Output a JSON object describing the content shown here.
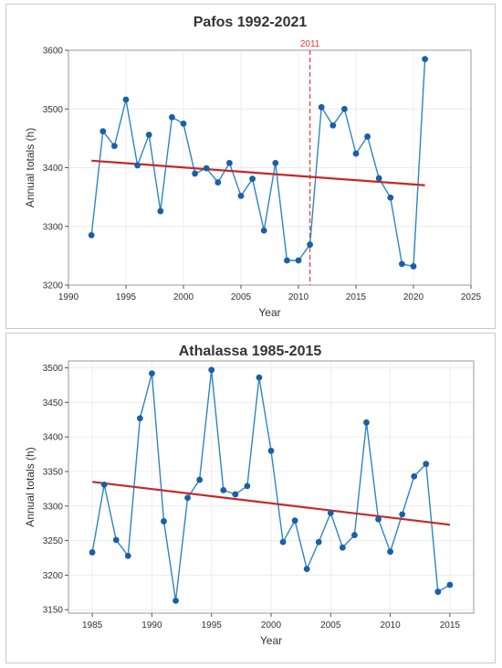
{
  "chart_data": [
    {
      "type": "line",
      "title": "Pafos 1992-2021",
      "xlabel": "Year",
      "ylabel": "Annual totals (h)",
      "xlim": [
        1990,
        2025
      ],
      "ylim": [
        3200,
        3600
      ],
      "xticks": [
        1990,
        1995,
        2000,
        2005,
        2010,
        2015,
        2020,
        2025
      ],
      "yticks": [
        3200,
        3300,
        3400,
        3500,
        3600
      ],
      "x": [
        1992,
        1993,
        1994,
        1995,
        1996,
        1997,
        1998,
        1999,
        2000,
        2001,
        2002,
        2003,
        2004,
        2005,
        2006,
        2007,
        2008,
        2009,
        2010,
        2011,
        2012,
        2013,
        2014,
        2015,
        2016,
        2017,
        2018,
        2019,
        2020,
        2021
      ],
      "values": [
        3285,
        3462,
        3437,
        3516,
        3404,
        3456,
        3326,
        3486,
        3475,
        3390,
        3399,
        3375,
        3408,
        3352,
        3381,
        3293,
        3408,
        3242,
        3242,
        3269,
        3503,
        3472,
        3500,
        3424,
        3453,
        3382,
        3349,
        3236,
        3232,
        3585
      ],
      "trend": {
        "x": [
          1992,
          2021
        ],
        "y": [
          3412,
          3370
        ]
      },
      "annotation": {
        "x": 2011,
        "label": "2011",
        "color": "#e53935"
      },
      "colors": {
        "line": "#2e86c1",
        "marker": "#1a5fa8",
        "trend": "#c62828"
      },
      "grid": true
    },
    {
      "type": "line",
      "title": "Athalassa 1985-2015",
      "xlabel": "Year",
      "ylabel": "Annual totals (h)",
      "xlim": [
        1983,
        2017
      ],
      "ylim": [
        3145,
        3510
      ],
      "xticks": [
        1985,
        1990,
        1995,
        2000,
        2005,
        2010,
        2015
      ],
      "yticks": [
        3150,
        3200,
        3250,
        3300,
        3350,
        3400,
        3450,
        3500
      ],
      "x": [
        1985,
        1986,
        1987,
        1988,
        1989,
        1990,
        1991,
        1992,
        1993,
        1994,
        1995,
        1996,
        1997,
        1998,
        1999,
        2000,
        2001,
        2002,
        2003,
        2004,
        2005,
        2006,
        2007,
        2008,
        2009,
        2010,
        2011,
        2012,
        2013,
        2014,
        2015
      ],
      "values": [
        3233,
        3331,
        3251,
        3228,
        3427,
        3492,
        3278,
        3163,
        3312,
        3338,
        3497,
        3323,
        3317,
        3329,
        3486,
        3380,
        3248,
        3279,
        3209,
        3248,
        3290,
        3240,
        3258,
        3421,
        3281,
        3234,
        3288,
        3343,
        3361,
        3176,
        3186
      ],
      "trend": {
        "x": [
          1985,
          2015
        ],
        "y": [
          3335,
          3273
        ]
      },
      "colors": {
        "line": "#2e86c1",
        "marker": "#1a5fa8",
        "trend": "#c62828"
      },
      "grid": true
    }
  ]
}
